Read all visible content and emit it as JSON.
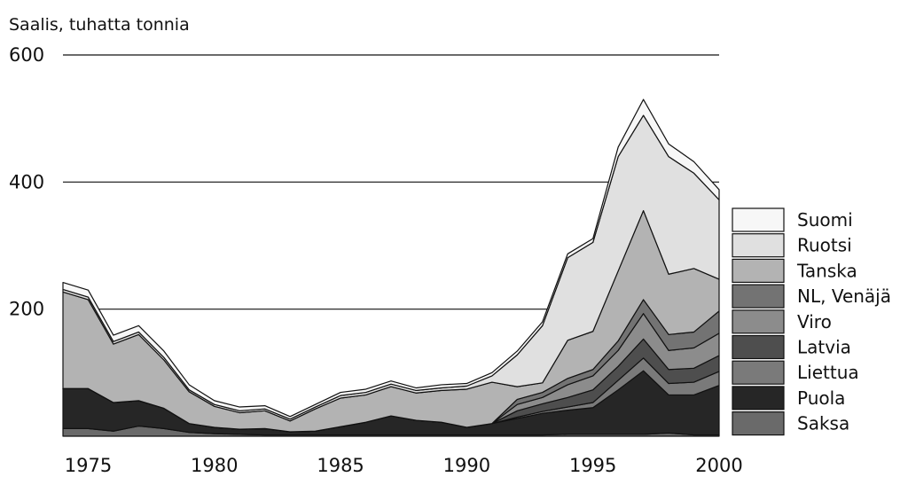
{
  "chart_data": {
    "type": "area",
    "stacked": true,
    "title": "",
    "ylabel": "Saalis, tuhatta tonnia",
    "xlabel": "",
    "xlim": [
      1974,
      2000
    ],
    "ylim": [
      0,
      600
    ],
    "x_ticks": [
      1975,
      1980,
      1985,
      1990,
      1995,
      2000
    ],
    "y_ticks": [
      200,
      400,
      600
    ],
    "grid": "horizontal",
    "legend_position": "right",
    "x": [
      1974,
      1975,
      1976,
      1977,
      1978,
      1979,
      1980,
      1981,
      1982,
      1983,
      1984,
      1985,
      1986,
      1987,
      1988,
      1989,
      1990,
      1991,
      1992,
      1993,
      1994,
      1995,
      1996,
      1997,
      1998,
      1999,
      2000
    ],
    "series": [
      {
        "name": "Saksa",
        "color": "#6a6a6a",
        "values": [
          12,
          12,
          8,
          16,
          12,
          6,
          4,
          3,
          2,
          2,
          2,
          2,
          2,
          2,
          2,
          2,
          2,
          2,
          2,
          2,
          3,
          3,
          3,
          3,
          5,
          2,
          2
        ]
      },
      {
        "name": "Puola",
        "color": "#262626",
        "values": [
          63,
          63,
          45,
          40,
          32,
          14,
          10,
          8,
          10,
          5,
          6,
          13,
          20,
          30,
          23,
          20,
          12,
          18,
          26,
          34,
          38,
          42,
          70,
          100,
          60,
          63,
          78
        ]
      },
      {
        "name": "Liettua",
        "color": "#7a7a7a",
        "values": [
          0,
          0,
          0,
          0,
          0,
          0,
          0,
          0,
          0,
          0,
          0,
          0,
          0,
          0,
          0,
          0,
          0,
          0,
          2,
          3,
          5,
          8,
          15,
          20,
          18,
          20,
          22
        ]
      },
      {
        "name": "Latvia",
        "color": "#4e4e4e",
        "values": [
          0,
          0,
          0,
          0,
          0,
          0,
          0,
          0,
          0,
          0,
          0,
          0,
          0,
          0,
          0,
          0,
          0,
          0,
          10,
          12,
          15,
          20,
          22,
          30,
          22,
          22,
          25
        ]
      },
      {
        "name": "Viro",
        "color": "#8c8c8c",
        "values": [
          0,
          0,
          0,
          0,
          0,
          0,
          0,
          0,
          0,
          0,
          0,
          0,
          0,
          0,
          0,
          0,
          0,
          0,
          10,
          10,
          20,
          22,
          25,
          40,
          30,
          32,
          35
        ]
      },
      {
        "name": "NL, Venäjä",
        "color": "#737373",
        "values": [
          0,
          0,
          0,
          0,
          0,
          0,
          0,
          0,
          0,
          0,
          0,
          0,
          0,
          0,
          0,
          0,
          0,
          0,
          8,
          8,
          10,
          10,
          15,
          22,
          25,
          25,
          35
        ]
      },
      {
        "name": "Tanska",
        "color": "#b3b3b3",
        "values": [
          152,
          140,
          92,
          104,
          76,
          50,
          33,
          26,
          28,
          17,
          35,
          45,
          43,
          46,
          43,
          50,
          60,
          65,
          20,
          15,
          60,
          60,
          110,
          140,
          95,
          100,
          50
        ]
      },
      {
        "name": "Ruotsi",
        "color": "#e0e0e0",
        "values": [
          4,
          4,
          4,
          4,
          4,
          3,
          3,
          3,
          3,
          3,
          3,
          4,
          4,
          4,
          4,
          4,
          5,
          10,
          50,
          90,
          130,
          140,
          180,
          150,
          185,
          150,
          125
        ]
      },
      {
        "name": "Suomi",
        "color": "#f7f7f7",
        "values": [
          11,
          11,
          10,
          10,
          10,
          8,
          6,
          6,
          5,
          4,
          4,
          5,
          5,
          5,
          4,
          5,
          4,
          5,
          6,
          6,
          6,
          6,
          15,
          25,
          20,
          18,
          16
        ]
      }
    ]
  }
}
